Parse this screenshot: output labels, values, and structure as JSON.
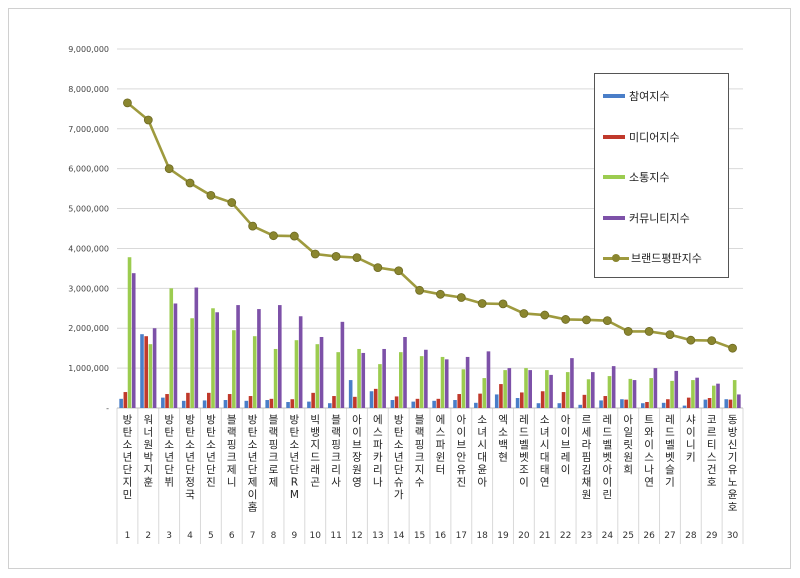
{
  "chart_data": {
    "type": "bar",
    "categories": [
      "방탄소년단 지민",
      "워너원 박지훈",
      "방탄소년단 뷔",
      "방탄소년단 정국",
      "방탄소년단 진",
      "블랙핑크 제니",
      "방탄소년단 제이홉",
      "블랙핑크 로제",
      "방탄소년단 RM",
      "빅뱅 지드래곤",
      "블랙핑크 리사",
      "아이브 장원영",
      "에스파 카리나",
      "방탄소년단 슈가",
      "블랙핑크 지수",
      "에스파 윈터",
      "아이브 안유진",
      "소녀시대 윤아",
      "엑소 백현",
      "레드벨벳 조이",
      "소녀시대 태연",
      "아이브 레이",
      "르세라핌 김채원",
      "레드벨벳 아이린",
      "아일릿 원희",
      "트와이스 나연",
      "레드벨벳 슬기",
      "샤이니 키",
      "코르티스 건호",
      "동방신기 유노윤호"
    ],
    "x_numbers": [
      "1",
      "2",
      "3",
      "4",
      "5",
      "6",
      "7",
      "8",
      "9",
      "10",
      "11",
      "12",
      "13",
      "14",
      "15",
      "16",
      "17",
      "18",
      "19",
      "20",
      "21",
      "22",
      "23",
      "24",
      "25",
      "26",
      "27",
      "28",
      "29",
      "30"
    ],
    "series": [
      {
        "name": "참여지수",
        "color": "#4a7ec8",
        "values": [
          230000,
          1850000,
          260000,
          180000,
          190000,
          200000,
          180000,
          200000,
          150000,
          160000,
          120000,
          700000,
          420000,
          200000,
          160000,
          180000,
          200000,
          130000,
          340000,
          250000,
          120000,
          120000,
          80000,
          190000,
          220000,
          120000,
          130000,
          60000,
          210000,
          220000
        ]
      },
      {
        "name": "미디어지수",
        "color": "#c0392b",
        "values": [
          400000,
          1800000,
          350000,
          380000,
          380000,
          350000,
          300000,
          230000,
          220000,
          380000,
          300000,
          280000,
          480000,
          290000,
          230000,
          230000,
          350000,
          360000,
          600000,
          390000,
          420000,
          400000,
          330000,
          300000,
          210000,
          150000,
          220000,
          260000,
          250000,
          210000
        ]
      },
      {
        "name": "소통지수",
        "color": "#9ccc50",
        "values": [
          3780000,
          1600000,
          3000000,
          2250000,
          2500000,
          1950000,
          1800000,
          1480000,
          1700000,
          1600000,
          1400000,
          1480000,
          1100000,
          1400000,
          1300000,
          1280000,
          970000,
          750000,
          950000,
          1000000,
          950000,
          900000,
          720000,
          800000,
          730000,
          750000,
          680000,
          700000,
          560000,
          700000
        ]
      },
      {
        "name": "커뮤니티지수",
        "color": "#7d51a8",
        "values": [
          3380000,
          2000000,
          2620000,
          3020000,
          2400000,
          2580000,
          2480000,
          2580000,
          2300000,
          1780000,
          2160000,
          1380000,
          1480000,
          1780000,
          1460000,
          1220000,
          1280000,
          1420000,
          1000000,
          950000,
          830000,
          1250000,
          900000,
          1050000,
          700000,
          1000000,
          930000,
          760000,
          610000,
          340000
        ]
      }
    ],
    "line": {
      "name": "브랜드평판지수",
      "color": "#9e9a3e",
      "values": [
        7650000,
        7220000,
        6000000,
        5640000,
        5330000,
        5150000,
        4560000,
        4320000,
        4310000,
        3860000,
        3800000,
        3770000,
        3520000,
        3440000,
        2950000,
        2850000,
        2770000,
        2620000,
        2610000,
        2370000,
        2330000,
        2220000,
        2210000,
        2190000,
        1920000,
        1920000,
        1840000,
        1700000,
        1690000,
        1500000
      ]
    },
    "ylim": [
      0,
      9000000
    ],
    "yticks": [
      {
        "value": 0,
        "label": "-"
      },
      {
        "value": 1000000,
        "label": "1,000,000"
      },
      {
        "value": 2000000,
        "label": "2,000,000"
      },
      {
        "value": 3000000,
        "label": "3,000,000"
      },
      {
        "value": 4000000,
        "label": "4,000,000"
      },
      {
        "value": 5000000,
        "label": "5,000,000"
      },
      {
        "value": 6000000,
        "label": "6,000,000"
      },
      {
        "value": 7000000,
        "label": "7,000,000"
      },
      {
        "value": 8000000,
        "label": "8,000,000"
      },
      {
        "value": 9000000,
        "label": "9,000,000"
      }
    ],
    "legend_position": "top-right",
    "grid": true
  }
}
